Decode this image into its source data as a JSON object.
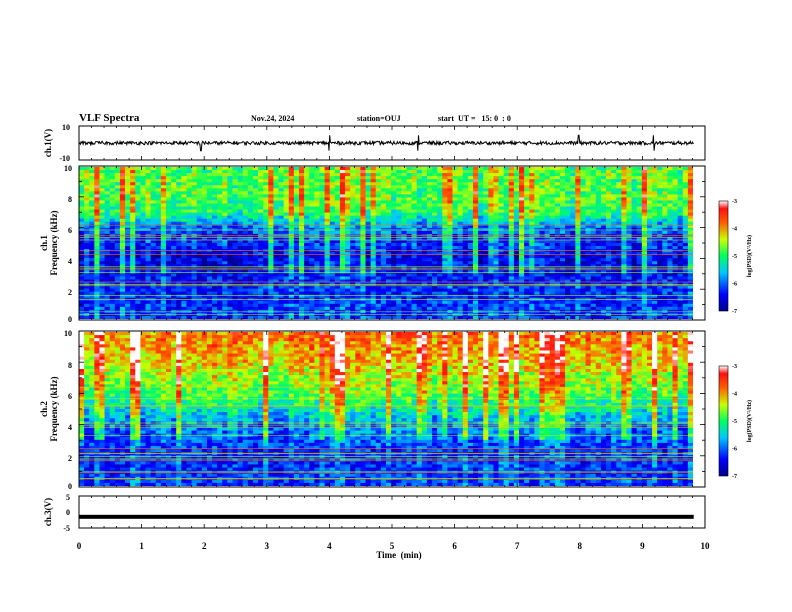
{
  "header": {
    "title": "VLF Spectra",
    "date": "Nov.24, 2024",
    "station": "station=OUJ",
    "start_ut": "start  UT =   15: 0  : 0"
  },
  "colors": {
    "waveform": "#000000",
    "axes": "#000000",
    "background": "#ffffff"
  },
  "chart_data": [
    {
      "type": "line",
      "panel": "ch1-waveform",
      "ylabel": "ch.1(V)",
      "ylim": [
        -10,
        10
      ],
      "y_ticks": [
        "10",
        "-10"
      ],
      "x_range_min": [
        0,
        10
      ],
      "mean_value": 0,
      "description_values": {
        "baseline": 0,
        "typical_amplitude": 1,
        "spikes_min": [
          1.95,
          4.0,
          5.42,
          7.98,
          9.18
        ]
      }
    },
    {
      "type": "heatmap",
      "panel": "ch1-spectrogram",
      "ylabel": "ch.1\nFrequency  (kHz)",
      "ylabel_line1": "ch.1",
      "ylabel_line2": "Frequency  (kHz)",
      "ylim": [
        0,
        10
      ],
      "y_ticks": [
        "0",
        "2",
        "4",
        "6",
        "8",
        "10"
      ],
      "colorbar": {
        "label": "log(PSD)(V²/Hz)",
        "range": [
          -7,
          -3
        ],
        "ticks": [
          "-3",
          "-4",
          "-5",
          "-6",
          "-7"
        ]
      },
      "band_profile_log_psd": [
        {
          "freq_khz": 0.5,
          "value": -6.2
        },
        {
          "freq_khz": 2,
          "value": -6.3
        },
        {
          "freq_khz": 4,
          "value": -6.5
        },
        {
          "freq_khz": 6,
          "value": -6.0
        },
        {
          "freq_khz": 7,
          "value": -5.0
        },
        {
          "freq_khz": 8,
          "value": -4.8
        },
        {
          "freq_khz": 10,
          "value": -4.8
        }
      ]
    },
    {
      "type": "heatmap",
      "panel": "ch2-spectrogram",
      "ylabel_line1": "ch.2",
      "ylabel_line2": "Frequency  (kHz)",
      "ylim": [
        0,
        10
      ],
      "y_ticks": [
        "0",
        "2",
        "4",
        "6",
        "8",
        "10"
      ],
      "colorbar": {
        "label": "log(PSD)(V²/Hz)",
        "range": [
          -7,
          -3
        ],
        "ticks": [
          "-3",
          "-4",
          "-5",
          "-6",
          "-7"
        ]
      },
      "band_profile_log_psd": [
        {
          "freq_khz": 0.5,
          "value": -6.2
        },
        {
          "freq_khz": 2,
          "value": -6.3
        },
        {
          "freq_khz": 4,
          "value": -5.8
        },
        {
          "freq_khz": 6,
          "value": -4.8
        },
        {
          "freq_khz": 8,
          "value": -4.2
        },
        {
          "freq_khz": 10,
          "value": -3.8
        }
      ]
    },
    {
      "type": "line",
      "panel": "ch3-waveform",
      "ylabel": "ch.3(V)",
      "ylim": [
        -5,
        5
      ],
      "y_ticks": [
        "5",
        "0",
        "-5"
      ],
      "mean_value": -1.5
    }
  ],
  "x_axis": {
    "label": "Time  (min)",
    "range": [
      0,
      10
    ],
    "ticks": [
      "0",
      "1",
      "2",
      "3",
      "4",
      "5",
      "6",
      "7",
      "8",
      "9",
      "10"
    ]
  }
}
